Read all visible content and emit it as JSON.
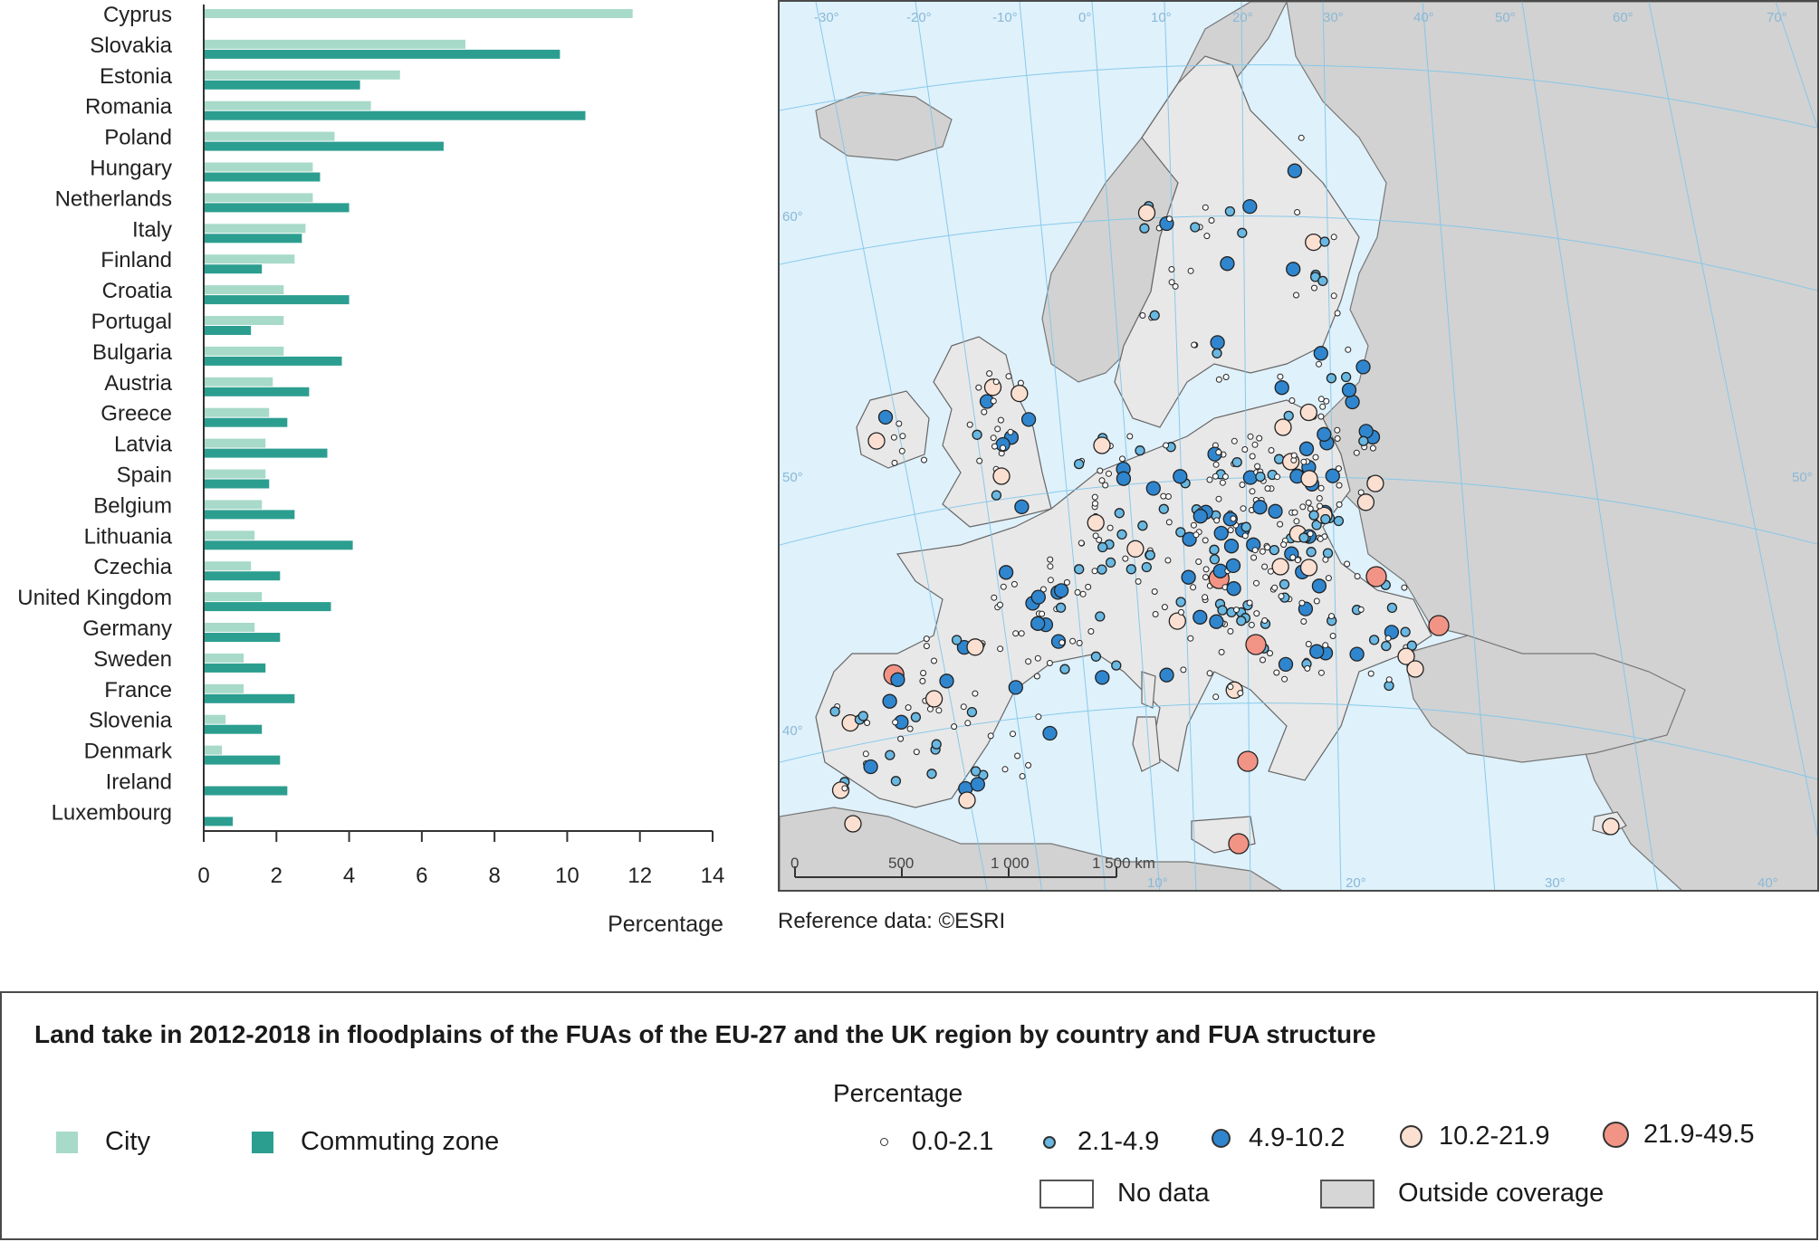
{
  "chart_data": {
    "type": "bar",
    "orientation": "horizontal",
    "categories": [
      "Cyprus",
      "Slovakia",
      "Estonia",
      "Romania",
      "Poland",
      "Hungary",
      "Netherlands",
      "Italy",
      "Finland",
      "Croatia",
      "Portugal",
      "Bulgaria",
      "Austria",
      "Greece",
      "Latvia",
      "Spain",
      "Belgium",
      "Lithuania",
      "Czechia",
      "United Kingdom",
      "Germany",
      "Sweden",
      "France",
      "Slovenia",
      "Denmark",
      "Ireland",
      "Luxembourg"
    ],
    "series": [
      {
        "name": "City",
        "color": "#a8dac9",
        "values": [
          11.8,
          7.2,
          5.4,
          4.6,
          3.6,
          3.0,
          3.0,
          2.8,
          2.5,
          2.2,
          2.2,
          2.2,
          1.9,
          1.8,
          1.7,
          1.7,
          1.6,
          1.4,
          1.3,
          1.6,
          1.4,
          1.1,
          1.1,
          0.6,
          0.5,
          0.0,
          0.0
        ]
      },
      {
        "name": "Commuting zone",
        "color": "#2c9e90",
        "values": [
          0.0,
          9.8,
          4.3,
          10.5,
          6.6,
          3.2,
          4.0,
          2.7,
          1.6,
          4.0,
          1.3,
          3.8,
          2.9,
          2.3,
          3.4,
          1.8,
          2.5,
          4.1,
          2.1,
          3.5,
          2.1,
          1.7,
          2.5,
          1.6,
          2.1,
          2.3,
          0.8
        ]
      }
    ],
    "xlabel": "Percentage",
    "xlim": [
      0,
      14
    ],
    "xticks": [
      0,
      2,
      4,
      6,
      8,
      10,
      12,
      14
    ]
  },
  "map": {
    "reference": "Reference data: ©ESRI",
    "longitude_labels": [
      "-30°",
      "-20°",
      "-10°",
      "0°",
      "10°",
      "20°",
      "30°",
      "40°",
      "50°",
      "60°",
      "70°"
    ],
    "latitude_labels": [
      "60°",
      "50°",
      "40°",
      "50°"
    ],
    "bottom_labels": [
      "10°",
      "20°",
      "30°",
      "40°"
    ],
    "scale_labels": [
      "0",
      "500",
      "1 000",
      "1 500 km"
    ],
    "colors": {
      "sea": "#dff1fb",
      "land": "#e8e8e8",
      "outside": "#d2d2d2",
      "border": "#666666"
    }
  },
  "legend": {
    "title": "Land take in 2012-2018 in floodplains of the FUAs of the EU-27 and the UK region by country and FUA structure",
    "series": [
      {
        "label": "City",
        "color": "#a8dac9"
      },
      {
        "label": "Commuting zone",
        "color": "#2c9e90"
      }
    ],
    "size_title": "Percentage",
    "classes": [
      {
        "label": "0.0-2.1",
        "color": "#ffffff"
      },
      {
        "label": "2.1-4.9",
        "color": "#69b8e2"
      },
      {
        "label": "4.9-10.2",
        "color": "#2f86cf"
      },
      {
        "label": "10.2-21.9",
        "color": "#fbe0d2"
      },
      {
        "label": "21.9-49.5",
        "color": "#f29485"
      }
    ],
    "no_data": "No data",
    "outside": "Outside coverage"
  }
}
